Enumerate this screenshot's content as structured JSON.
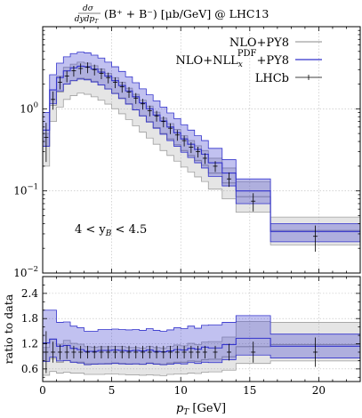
{
  "chart_data": [
    {
      "type": "line",
      "panel": "main",
      "title": "dσ/dy dpT (B⁺ + B⁻) [μb/GeV]  @ LHC13",
      "title_parts": {
        "frac_num": "dσ",
        "frac_den": "dydp",
        "frac_den_sub": "T",
        "body": "(B⁺ + B⁻) [μb/GeV]  @ LHC13"
      },
      "xlabel": "",
      "ylabel": "",
      "scale_y": "log",
      "xlim": [
        0,
        23
      ],
      "ylim": [
        0.01,
        10
      ],
      "grid": true,
      "legend_position": "top-right",
      "annotation": {
        "pre": "4 < y",
        "sub": "B",
        "post": " < 4.5"
      },
      "y_tick_labels": [
        {
          "value": 0.01,
          "base": "10",
          "exp": "−2"
        },
        {
          "value": 0.1,
          "base": "10",
          "exp": "−1"
        },
        {
          "value": 1,
          "base": "10",
          "exp": "0"
        }
      ],
      "series": [
        {
          "name": "NLO+PY8",
          "color": "#a0a0a0",
          "band": true,
          "edges": [
            0,
            0.5,
            1,
            1.5,
            2,
            2.5,
            3,
            3.5,
            4,
            4.5,
            5,
            5.5,
            6,
            6.5,
            7,
            7.5,
            8,
            8.5,
            9,
            9.5,
            10,
            10.5,
            11,
            11.5,
            12,
            13,
            14,
            16.5,
            23
          ],
          "central": [
            0.35,
            1.1,
            1.6,
            2.0,
            2.2,
            2.35,
            2.3,
            2.15,
            1.95,
            1.75,
            1.55,
            1.35,
            1.15,
            0.97,
            0.82,
            0.7,
            0.59,
            0.5,
            0.43,
            0.365,
            0.31,
            0.27,
            0.235,
            0.205,
            0.165,
            0.125,
            0.085,
            0.033
          ],
          "low": [
            0.2,
            0.7,
            1.05,
            1.3,
            1.45,
            1.55,
            1.5,
            1.4,
            1.27,
            1.14,
            1.0,
            0.87,
            0.74,
            0.62,
            0.52,
            0.44,
            0.37,
            0.31,
            0.27,
            0.23,
            0.195,
            0.17,
            0.148,
            0.13,
            0.105,
            0.08,
            0.055,
            0.022
          ],
          "high": [
            0.5,
            1.7,
            2.5,
            3.2,
            3.5,
            3.7,
            3.6,
            3.35,
            3.05,
            2.7,
            2.4,
            2.1,
            1.78,
            1.5,
            1.27,
            1.08,
            0.91,
            0.77,
            0.66,
            0.56,
            0.47,
            0.41,
            0.355,
            0.31,
            0.25,
            0.19,
            0.13,
            0.048
          ]
        },
        {
          "name": "NLO+NLL",
          "name_sub": "x",
          "name_sup": "PDF",
          "name_suffix": "+PY8",
          "color": "#3333cc",
          "band": true,
          "edges": [
            0,
            0.5,
            1,
            1.5,
            2,
            2.5,
            3,
            3.5,
            4,
            4.5,
            5,
            5.5,
            6,
            6.5,
            7,
            7.5,
            8,
            8.5,
            9,
            9.5,
            10,
            10.5,
            11,
            11.5,
            12,
            13,
            14,
            16.5,
            23
          ],
          "central": [
            0.55,
            1.7,
            2.4,
            2.9,
            3.15,
            3.3,
            3.25,
            3.05,
            2.8,
            2.5,
            2.2,
            1.92,
            1.65,
            1.4,
            1.18,
            1.0,
            0.84,
            0.71,
            0.6,
            0.51,
            0.43,
            0.37,
            0.32,
            0.28,
            0.22,
            0.165,
            0.1,
            0.032
          ],
          "low": [
            0.35,
            1.15,
            1.65,
            2.0,
            2.2,
            2.3,
            2.25,
            2.12,
            1.95,
            1.74,
            1.53,
            1.33,
            1.14,
            0.97,
            0.82,
            0.69,
            0.58,
            0.49,
            0.41,
            0.35,
            0.295,
            0.255,
            0.22,
            0.19,
            0.15,
            0.115,
            0.07,
            0.024
          ],
          "high": [
            0.9,
            2.6,
            3.6,
            4.3,
            4.7,
            4.9,
            4.8,
            4.5,
            4.15,
            3.7,
            3.25,
            2.85,
            2.45,
            2.08,
            1.75,
            1.48,
            1.25,
            1.05,
            0.89,
            0.76,
            0.64,
            0.55,
            0.47,
            0.41,
            0.33,
            0.24,
            0.14,
            0.04
          ]
        },
        {
          "name": "LHCb",
          "color": "#000000",
          "type": "errorbar",
          "x": [
            0.25,
            0.75,
            1.25,
            1.75,
            2.25,
            2.75,
            3.25,
            3.75,
            4.25,
            4.75,
            5.25,
            5.75,
            6.25,
            6.75,
            7.25,
            7.75,
            8.25,
            8.75,
            9.25,
            9.75,
            10.25,
            10.75,
            11.25,
            11.75,
            12.5,
            13.5,
            15.25,
            19.75
          ],
          "y": [
            0.45,
            1.3,
            2.1,
            2.5,
            2.9,
            3.1,
            3.2,
            3.0,
            2.7,
            2.4,
            2.1,
            1.85,
            1.6,
            1.35,
            1.15,
            0.95,
            0.82,
            0.7,
            0.58,
            0.48,
            0.41,
            0.34,
            0.3,
            0.25,
            0.2,
            0.14,
            0.075,
            0.028
          ],
          "yerr_rel": [
            0.5,
            0.25,
            0.18,
            0.16,
            0.15,
            0.15,
            0.15,
            0.15,
            0.15,
            0.15,
            0.15,
            0.15,
            0.15,
            0.15,
            0.15,
            0.15,
            0.15,
            0.15,
            0.15,
            0.15,
            0.15,
            0.15,
            0.15,
            0.15,
            0.15,
            0.2,
            0.25,
            0.35
          ]
        }
      ]
    },
    {
      "type": "line",
      "panel": "ratio",
      "xlabel": "p_T [GeV]",
      "xlabel_parts": {
        "pre": "p",
        "sub": "T",
        "post": " [GeV]"
      },
      "ylabel": "ratio to data",
      "xlim": [
        0,
        23
      ],
      "ylim": [
        0.3,
        2.8
      ],
      "grid": true,
      "x_ticks": [
        0,
        5,
        10,
        15,
        20
      ],
      "y_ticks": [
        0.6,
        1.2,
        1.8,
        2.4
      ],
      "series": [
        {
          "name": "NLO+PY8",
          "color": "#a0a0a0",
          "band": true,
          "edges": [
            0,
            0.5,
            1,
            1.5,
            2,
            2.5,
            3,
            3.5,
            4,
            4.5,
            5,
            5.5,
            6,
            6.5,
            7,
            7.5,
            8,
            8.5,
            9,
            9.5,
            10,
            10.5,
            11,
            11.5,
            12,
            13,
            14,
            16.5,
            23
          ],
          "central": [
            0.78,
            0.85,
            0.76,
            0.8,
            0.76,
            0.76,
            0.72,
            0.72,
            0.72,
            0.73,
            0.74,
            0.73,
            0.72,
            0.72,
            0.71,
            0.74,
            0.72,
            0.71,
            0.74,
            0.76,
            0.76,
            0.79,
            0.78,
            0.82,
            0.83,
            0.89,
            1.13,
            1.18
          ],
          "low": [
            0.45,
            0.54,
            0.5,
            0.52,
            0.5,
            0.5,
            0.47,
            0.47,
            0.47,
            0.48,
            0.48,
            0.47,
            0.46,
            0.46,
            0.45,
            0.46,
            0.45,
            0.44,
            0.47,
            0.48,
            0.48,
            0.5,
            0.49,
            0.52,
            0.53,
            0.57,
            0.73,
            0.79
          ],
          "high": [
            1.11,
            1.31,
            1.19,
            1.28,
            1.21,
            1.19,
            1.13,
            1.12,
            1.13,
            1.13,
            1.14,
            1.14,
            1.11,
            1.11,
            1.1,
            1.14,
            1.11,
            1.1,
            1.14,
            1.17,
            1.15,
            1.21,
            1.18,
            1.24,
            1.25,
            1.36,
            1.73,
            1.71
          ]
        },
        {
          "name": "NLO+NLL_x^PDF+PY8",
          "color": "#3333cc",
          "band": true,
          "edges": [
            0,
            0.5,
            1,
            1.5,
            2,
            2.5,
            3,
            3.5,
            4,
            4.5,
            5,
            5.5,
            6,
            6.5,
            7,
            7.5,
            8,
            8.5,
            9,
            9.5,
            10,
            10.5,
            11,
            11.5,
            12,
            13,
            14,
            16.5,
            23
          ],
          "central": [
            1.22,
            1.31,
            1.14,
            1.16,
            1.09,
            1.06,
            1.02,
            1.02,
            1.04,
            1.04,
            1.05,
            1.04,
            1.03,
            1.04,
            1.03,
            1.05,
            1.02,
            1.01,
            1.03,
            1.06,
            1.05,
            1.09,
            1.07,
            1.12,
            1.1,
            1.18,
            1.33,
            1.14
          ],
          "low": [
            0.78,
            0.88,
            0.79,
            0.8,
            0.76,
            0.74,
            0.7,
            0.71,
            0.72,
            0.72,
            0.73,
            0.72,
            0.71,
            0.72,
            0.71,
            0.73,
            0.71,
            0.7,
            0.71,
            0.73,
            0.72,
            0.75,
            0.73,
            0.76,
            0.75,
            0.82,
            0.93,
            0.86
          ],
          "high": [
            2.0,
            2.0,
            1.71,
            1.72,
            1.62,
            1.58,
            1.5,
            1.5,
            1.54,
            1.54,
            1.55,
            1.54,
            1.53,
            1.54,
            1.52,
            1.56,
            1.52,
            1.5,
            1.53,
            1.58,
            1.56,
            1.62,
            1.57,
            1.64,
            1.65,
            1.71,
            1.87,
            1.43
          ]
        },
        {
          "name": "LHCb",
          "color": "#000000",
          "type": "errorbar",
          "x": [
            0.25,
            0.75,
            1.25,
            1.75,
            2.25,
            2.75,
            3.25,
            3.75,
            4.25,
            4.75,
            5.25,
            5.75,
            6.25,
            6.75,
            7.25,
            7.75,
            8.25,
            8.75,
            9.25,
            9.75,
            10.25,
            10.75,
            11.25,
            11.75,
            12.5,
            13.5,
            15.25,
            19.75
          ],
          "y": [
            1,
            1,
            1,
            1,
            1,
            1,
            1,
            1,
            1,
            1,
            1,
            1,
            1,
            1,
            1,
            1,
            1,
            1,
            1,
            1,
            1,
            1,
            1,
            1,
            1,
            1,
            1,
            1
          ],
          "yerr": [
            0.5,
            0.25,
            0.18,
            0.16,
            0.15,
            0.15,
            0.15,
            0.15,
            0.15,
            0.15,
            0.15,
            0.15,
            0.15,
            0.15,
            0.15,
            0.15,
            0.15,
            0.15,
            0.15,
            0.15,
            0.15,
            0.15,
            0.15,
            0.15,
            0.15,
            0.2,
            0.25,
            0.35
          ]
        }
      ]
    }
  ]
}
